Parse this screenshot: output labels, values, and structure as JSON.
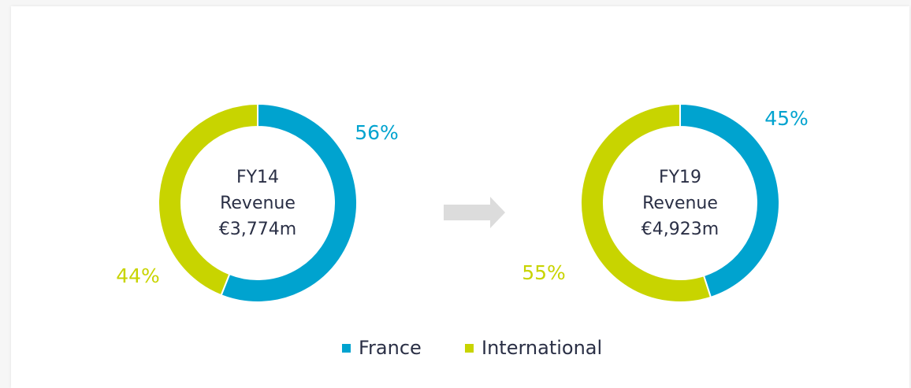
{
  "legend": [
    {
      "name": "France",
      "color": "#00a3cf"
    },
    {
      "name": "International",
      "color": "#c8d400"
    }
  ],
  "chart_data": [
    {
      "type": "pie",
      "donut": true,
      "center_text": [
        "FY14",
        "Revenue",
        "€3,774m"
      ],
      "values": [
        56,
        44
      ],
      "value_labels": [
        "56%",
        "44%"
      ]
    },
    {
      "type": "pie",
      "donut": true,
      "center_text": [
        "FY19",
        "Revenue",
        "€4,923m"
      ],
      "values": [
        45,
        55
      ],
      "value_labels": [
        "45%",
        "55%"
      ]
    }
  ]
}
